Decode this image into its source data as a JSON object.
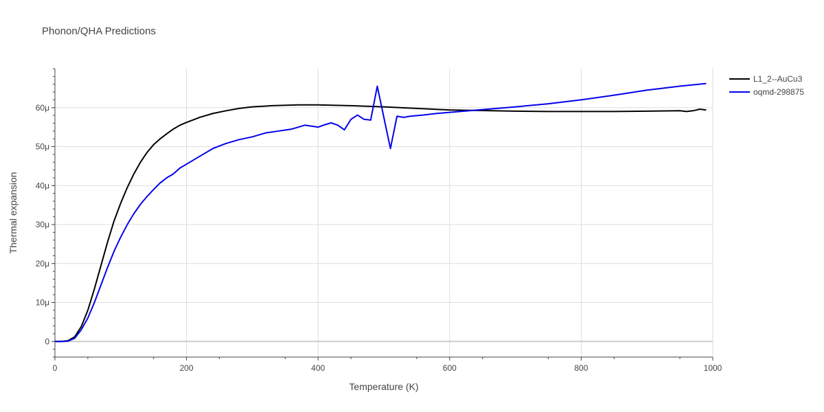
{
  "chart_data": {
    "type": "line",
    "title": "Phonon/QHA Predictions",
    "xlabel": "Temperature (K)",
    "ylabel": "Thermal expansion",
    "xlim": [
      0,
      1000
    ],
    "ylim": [
      -4e-06,
      7e-05
    ],
    "x_ticks": [
      0,
      200,
      400,
      600,
      800,
      1000
    ],
    "x_tick_labels": [
      "0",
      "200",
      "400",
      "600",
      "800",
      "1000"
    ],
    "y_ticks": [
      0,
      1e-05,
      2e-05,
      3e-05,
      4e-05,
      5e-05,
      6e-05
    ],
    "y_tick_labels": [
      "0",
      "10μ",
      "20μ",
      "30μ",
      "40μ",
      "50μ",
      "60μ"
    ],
    "grid": true,
    "legend_position": "top-right outside",
    "series": [
      {
        "name": "L1_2--AuCu3",
        "color": "#000000",
        "x": [
          0,
          10,
          20,
          30,
          40,
          50,
          60,
          70,
          80,
          90,
          100,
          110,
          120,
          130,
          140,
          150,
          160,
          170,
          180,
          190,
          200,
          220,
          240,
          260,
          280,
          300,
          330,
          370,
          400,
          450,
          500,
          600,
          700,
          750,
          800,
          850,
          900,
          950,
          960,
          970,
          980,
          990
        ],
        "y": [
          0,
          0,
          2e-07,
          1.2e-06,
          3.8e-06,
          8e-06,
          1.35e-05,
          1.95e-05,
          2.55e-05,
          3.1e-05,
          3.55e-05,
          3.95e-05,
          4.3e-05,
          4.6e-05,
          4.85e-05,
          5.05e-05,
          5.2e-05,
          5.33e-05,
          5.45e-05,
          5.55e-05,
          5.62e-05,
          5.75e-05,
          5.85e-05,
          5.92e-05,
          5.98e-05,
          6.02e-05,
          6.05e-05,
          6.07e-05,
          6.07e-05,
          6.05e-05,
          6.02e-05,
          5.94e-05,
          5.91e-05,
          5.9e-05,
          5.9e-05,
          5.9e-05,
          5.91e-05,
          5.92e-05,
          5.9e-05,
          5.92e-05,
          5.96e-05,
          5.94e-05
        ]
      },
      {
        "name": "oqmd-298875",
        "color": "#0000ee",
        "x": [
          0,
          10,
          20,
          30,
          40,
          50,
          60,
          70,
          80,
          90,
          100,
          110,
          120,
          130,
          140,
          150,
          160,
          170,
          180,
          190,
          200,
          220,
          240,
          260,
          280,
          300,
          320,
          340,
          360,
          380,
          400,
          410,
          420,
          430,
          440,
          450,
          460,
          470,
          480,
          490,
          510,
          520,
          530,
          540,
          560,
          580,
          600,
          650,
          700,
          750,
          800,
          850,
          900,
          950,
          990
        ],
        "y": [
          0,
          0,
          1e-07,
          8e-07,
          3e-06,
          6e-06,
          1e-05,
          1.45e-05,
          1.9e-05,
          2.32e-05,
          2.68e-05,
          3e-05,
          3.28e-05,
          3.52e-05,
          3.72e-05,
          3.9e-05,
          4.07e-05,
          4.2e-05,
          4.3e-05,
          4.45e-05,
          4.55e-05,
          4.75e-05,
          4.95e-05,
          5.08e-05,
          5.18e-05,
          5.25e-05,
          5.35e-05,
          5.4e-05,
          5.45e-05,
          5.55e-05,
          5.5e-05,
          5.56e-05,
          5.61e-05,
          5.55e-05,
          5.43e-05,
          5.7e-05,
          5.81e-05,
          5.7e-05,
          5.68e-05,
          6.55e-05,
          4.95e-05,
          5.78e-05,
          5.75e-05,
          5.78e-05,
          5.81e-05,
          5.85e-05,
          5.88e-05,
          5.95e-05,
          6.02e-05,
          6.1e-05,
          6.2e-05,
          6.32e-05,
          6.45e-05,
          6.55e-05,
          6.62e-05
        ]
      }
    ]
  }
}
